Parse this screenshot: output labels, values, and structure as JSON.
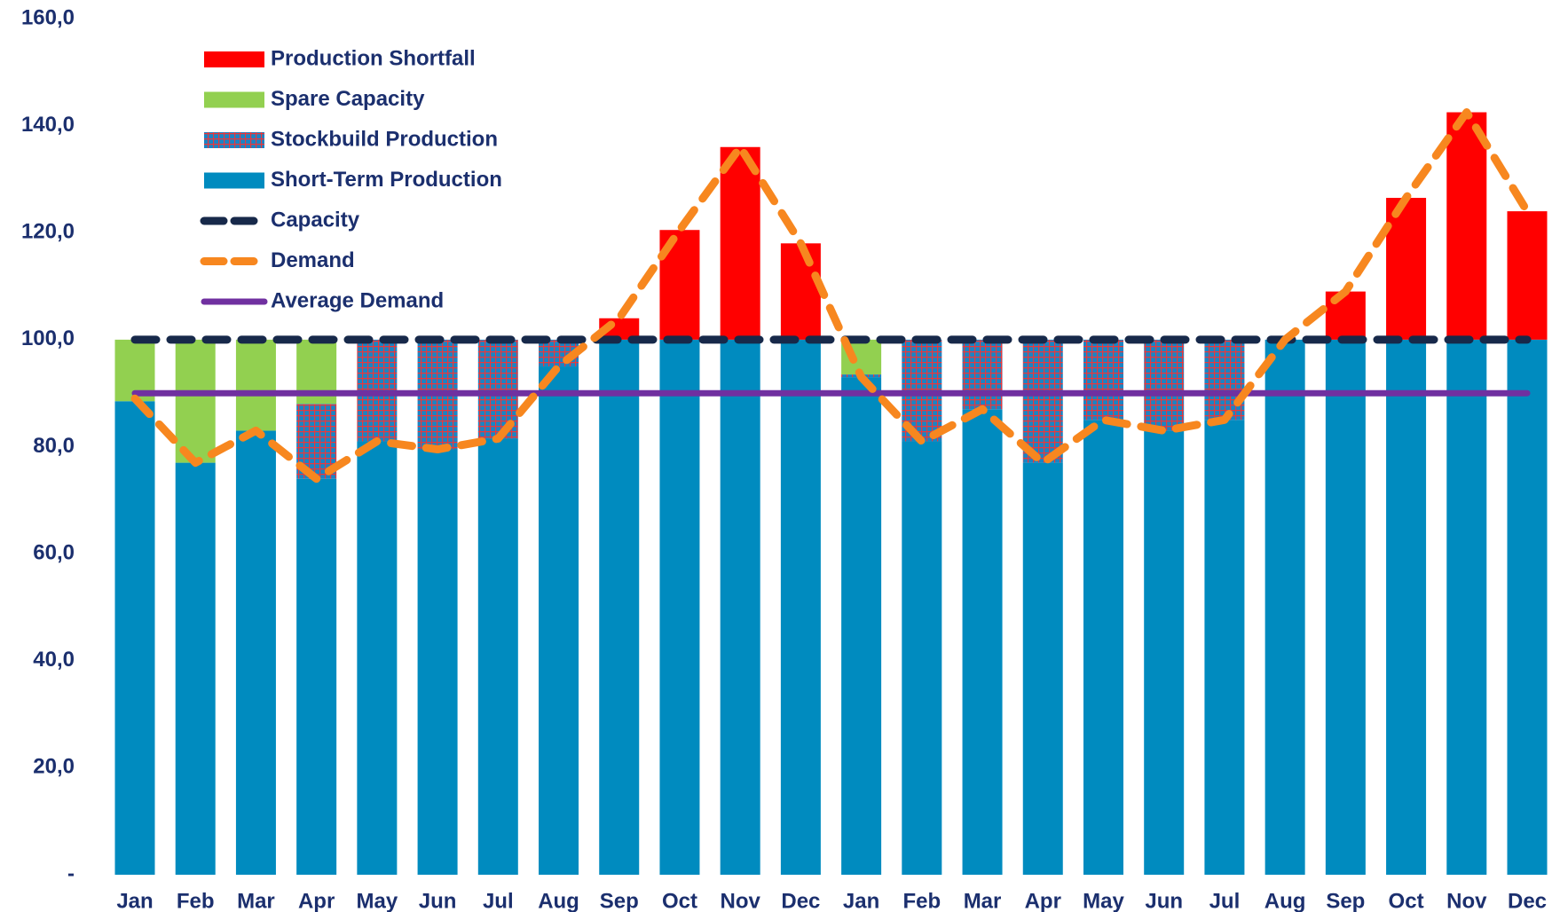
{
  "chart_data": {
    "type": "bar",
    "categories": [
      "Jan",
      "Feb",
      "Mar",
      "Apr",
      "May",
      "Jun",
      "Jul",
      "Aug",
      "Sep",
      "Oct",
      "Nov",
      "Dec",
      "Jan",
      "Feb",
      "Mar",
      "Apr",
      "May",
      "Jun",
      "Jul",
      "Aug",
      "Sep",
      "Oct",
      "Nov",
      "Dec"
    ],
    "ylim": [
      0,
      160
    ],
    "yticks": [
      {
        "value": 0,
        "label": "-"
      },
      {
        "value": 20,
        "label": "20,0"
      },
      {
        "value": 40,
        "label": "40,0"
      },
      {
        "value": 60,
        "label": "60,0"
      },
      {
        "value": 80,
        "label": "80,0"
      },
      {
        "value": 100,
        "label": "100,0"
      },
      {
        "value": 120,
        "label": "120,0"
      },
      {
        "value": 140,
        "label": "140,0"
      },
      {
        "value": 160,
        "label": "160,0"
      }
    ],
    "series": [
      {
        "name": "Production Shortfall",
        "kind": "bar",
        "color": "#ff0000",
        "values": [
          0,
          0,
          0,
          0,
          0,
          0,
          0,
          0,
          4,
          20.5,
          36,
          18,
          0,
          0,
          0,
          0,
          0,
          0,
          0,
          0,
          9,
          26.5,
          42.5,
          24
        ]
      },
      {
        "name": "Spare Capacity",
        "kind": "bar",
        "color": "#92d050",
        "values": [
          11.5,
          23,
          17,
          12,
          0,
          0,
          0,
          0,
          0,
          0,
          0,
          0,
          6.5,
          0,
          0,
          0,
          0,
          0,
          0,
          0,
          0,
          0,
          0,
          0
        ]
      },
      {
        "name": "Stockbuild Production",
        "kind": "bar",
        "color": "#e8383d",
        "pattern": "grid",
        "values": [
          0,
          0,
          0,
          14,
          19,
          20.5,
          18.5,
          5,
          0,
          0,
          0,
          0,
          0.5,
          19,
          13,
          23,
          15,
          17,
          15,
          0,
          0,
          0,
          0,
          0
        ]
      },
      {
        "name": "Short-Term Production",
        "kind": "bar",
        "color": "#008bbf",
        "values": [
          88.5,
          77,
          83,
          74,
          81,
          79.5,
          81.5,
          95,
          100,
          100,
          100,
          100,
          93,
          81,
          87,
          77,
          85,
          83,
          85,
          100,
          100,
          100,
          100,
          100
        ]
      },
      {
        "name": "Capacity",
        "kind": "line",
        "dash": true,
        "color": "#17294a",
        "values": [
          100,
          100,
          100,
          100,
          100,
          100,
          100,
          100,
          100,
          100,
          100,
          100,
          100,
          100,
          100,
          100,
          100,
          100,
          100,
          100,
          100,
          100,
          100,
          100
        ]
      },
      {
        "name": "Demand",
        "kind": "line",
        "dash": true,
        "color": "#f7871f",
        "values": [
          89,
          77,
          83,
          74,
          81,
          79.5,
          81.5,
          95,
          104,
          120.5,
          136,
          118,
          93,
          81,
          87,
          77,
          85,
          83,
          85,
          100,
          109,
          126.5,
          142.5,
          124
        ]
      },
      {
        "name": "Average Demand",
        "kind": "line",
        "dash": false,
        "color": "#7030a0",
        "values": [
          90,
          90,
          90,
          90,
          90,
          90,
          90,
          90,
          90,
          90,
          90,
          90,
          90,
          90,
          90,
          90,
          90,
          90,
          90,
          90,
          90,
          90,
          90,
          90
        ]
      }
    ]
  }
}
